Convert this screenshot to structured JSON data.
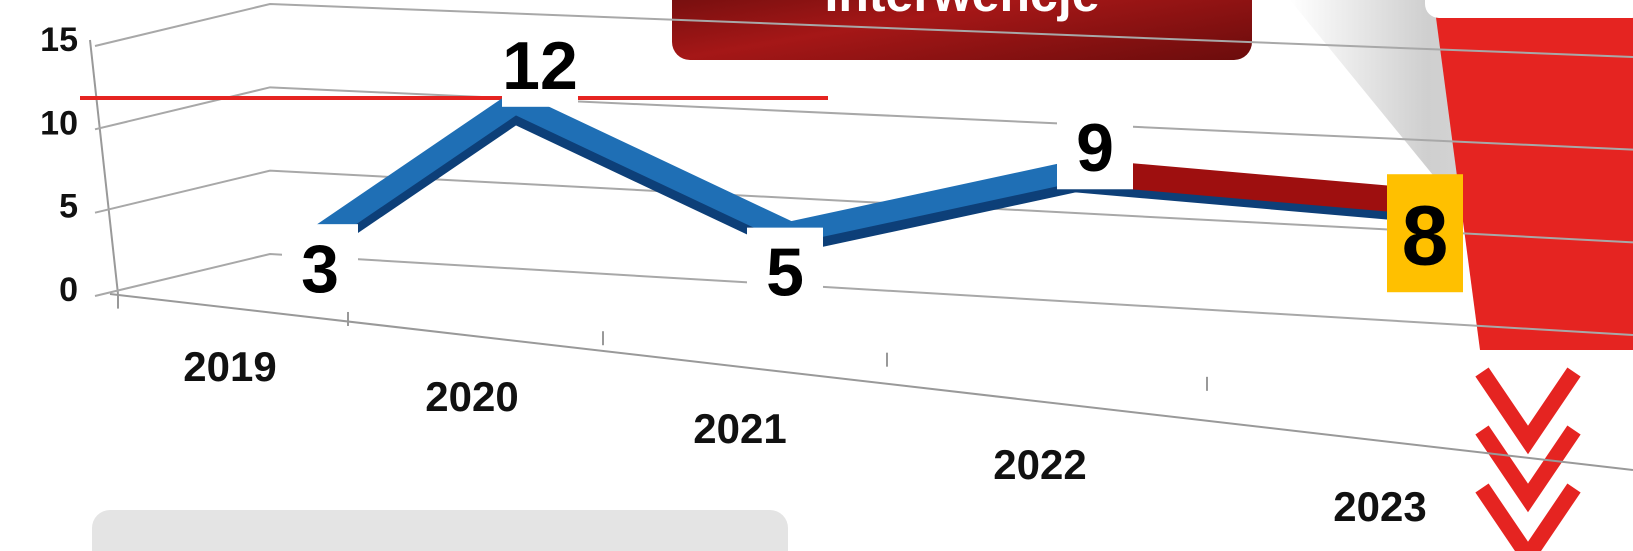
{
  "chart_data": {
    "type": "line",
    "title": "Interwencje",
    "categories": [
      "2019",
      "2020",
      "2021",
      "2022",
      "2023"
    ],
    "series": [
      {
        "name": "Interwencje",
        "color": "#1f6fb5",
        "values": [
          3,
          12,
          5,
          9,
          8
        ]
      }
    ],
    "highlight_color": "#9e0f0f",
    "highlight_label_color": "#ffc000",
    "ylim": [
      0,
      15
    ],
    "yticks": [
      0,
      5,
      10,
      15
    ],
    "grid": true
  }
}
